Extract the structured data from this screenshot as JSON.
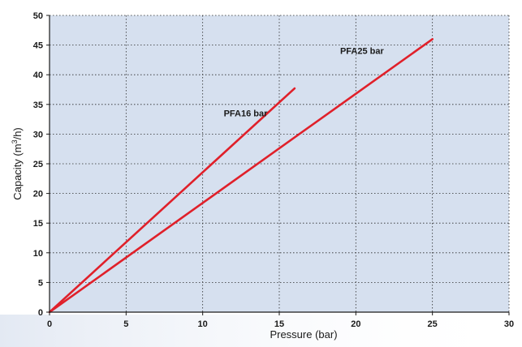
{
  "chart_data": {
    "type": "line",
    "title": "",
    "xlabel": "Pressure (bar)",
    "ylabel_prefix": "Capacity (m",
    "ylabel_sup": "3",
    "ylabel_suffix": "/h)",
    "xlim": [
      0,
      30
    ],
    "ylim": [
      0,
      50
    ],
    "x_ticks": [
      0,
      5,
      10,
      15,
      20,
      25,
      30
    ],
    "y_ticks": [
      0,
      5,
      10,
      15,
      20,
      25,
      30,
      35,
      40,
      45,
      50
    ],
    "grid": true,
    "series": [
      {
        "name": "PFA16 bar",
        "x": [
          0,
          16
        ],
        "y": [
          0,
          37.7
        ]
      },
      {
        "name": "PFA25 bar",
        "x": [
          0,
          25
        ],
        "y": [
          0,
          46
        ]
      }
    ],
    "series_labels": [
      {
        "text": "PFA16 bar",
        "at_x": 12.8,
        "at_y": 33
      },
      {
        "text": "PFA25 bar",
        "at_x": 20.4,
        "at_y": 43.5
      }
    ],
    "colors": {
      "plot_background": "#d6e0ef",
      "line": "#e0202a",
      "axis": "#1a1a1a",
      "bottom_band": "#e3e9f3"
    }
  }
}
